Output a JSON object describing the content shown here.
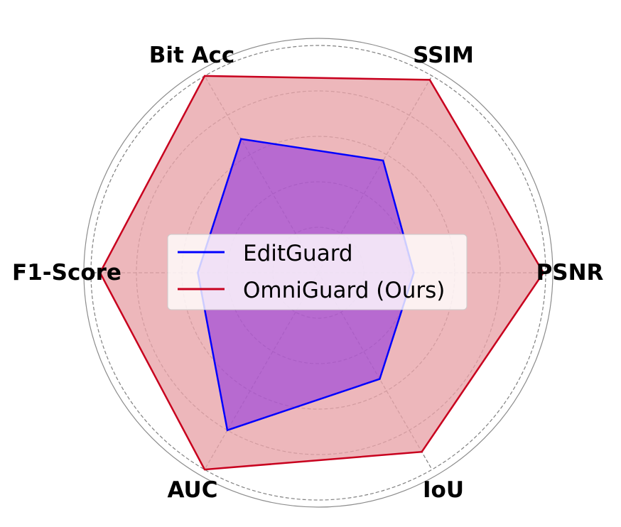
{
  "chart_data": {
    "type": "radar",
    "axes": [
      "PSNR",
      "SSIM",
      "Bit Acc",
      "F1-Score",
      "AUC",
      "IoU"
    ],
    "rlim": [
      0,
      1
    ],
    "rings": [
      0.2,
      0.4,
      0.6,
      0.8,
      1.0
    ],
    "grid": true,
    "legend": "center",
    "series": [
      {
        "name": "EditGuard",
        "values": [
          0.42,
          0.57,
          0.68,
          0.53,
          0.8,
          0.54
        ],
        "color": "#0000ff",
        "fill": "#8a2be2"
      },
      {
        "name": "OmniGuard (Ours)",
        "values": [
          0.99,
          0.98,
          1.0,
          0.96,
          1.0,
          0.91
        ],
        "color": "#c8001e",
        "fill": "#e8a3a8"
      }
    ]
  }
}
